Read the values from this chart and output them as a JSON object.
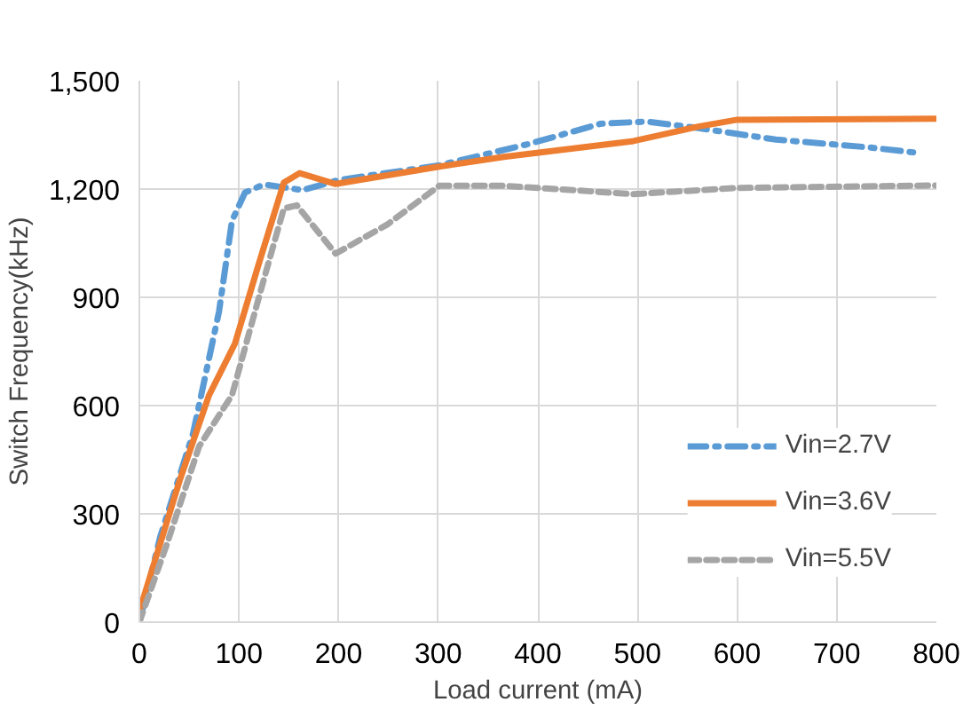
{
  "chart_data": {
    "type": "line",
    "xlabel": "Load current (mA)",
    "ylabel": "Switch Frequency(kHz)",
    "xlim": [
      0,
      800
    ],
    "xticks": [
      0,
      100,
      200,
      300,
      400,
      500,
      600,
      700,
      800
    ],
    "ylim": [
      0,
      1500
    ],
    "yticks": [
      0,
      300,
      600,
      900,
      {
        "value": 1200,
        "label": "1,200"
      },
      {
        "value": 1500,
        "label": "1,500"
      }
    ],
    "grid": true,
    "legend": "bottom right",
    "series": [
      {
        "name": "Vin=2.7V",
        "color": "#5b9bd5",
        "line_style": "dashdot",
        "x": [
          0,
          21,
          54,
          80,
          93,
          106,
          125,
          164,
          200,
          300,
          391,
          463,
          509,
          561,
          639,
          730,
          779
        ],
        "values": [
          0,
          237,
          524,
          861,
          1112,
          1190,
          1213,
          1197,
          1225,
          1265,
          1325,
          1381,
          1387,
          1369,
          1337,
          1316,
          1301
        ]
      },
      {
        "name": "Vin=3.6V",
        "color": "#ed7d31",
        "line_style": "solid",
        "x": [
          0,
          41,
          70,
          96,
          119,
          145,
          161,
          197,
          301,
          366,
          496,
          561,
          600,
          800
        ],
        "values": [
          30,
          397,
          629,
          772,
          985,
          1218,
          1244,
          1214,
          1262,
          1289,
          1333,
          1373,
          1392,
          1395
        ]
      },
      {
        "name": "Vin=5.5V",
        "color": "#a5a5a5",
        "line_style": "dashed",
        "x": [
          0,
          28,
          60,
          93,
          125,
          145,
          158,
          197,
          249,
          301,
          366,
          496,
          600,
          800
        ],
        "values": [
          0,
          219,
          487,
          629,
          950,
          1146,
          1155,
          1021,
          1102,
          1209,
          1209,
          1186,
          1203,
          1210
        ]
      }
    ]
  }
}
